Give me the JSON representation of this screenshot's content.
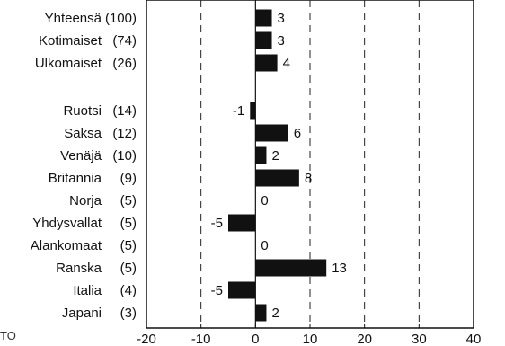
{
  "chart_data": {
    "type": "bar",
    "orientation": "horizontal",
    "categories": [
      {
        "label": "Yhteensä",
        "count": "(100)",
        "value": 3
      },
      {
        "label": "Kotimaiset",
        "count": "(74)",
        "value": 3
      },
      {
        "label": "Ulkomaiset",
        "count": "(26)",
        "value": 4
      },
      {
        "label": "Ruotsi",
        "count": "(14)",
        "value": -1
      },
      {
        "label": "Saksa",
        "count": "(12)",
        "value": 6
      },
      {
        "label": "Venäjä",
        "count": "(10)",
        "value": 2
      },
      {
        "label": "Britannia",
        "count": "(9)",
        "value": 8
      },
      {
        "label": "Norja",
        "count": "(5)",
        "value": 0
      },
      {
        "label": "Yhdysvallat",
        "count": "(5)",
        "value": -5
      },
      {
        "label": "Alankomaat",
        "count": "(5)",
        "value": 0
      },
      {
        "label": "Ranska",
        "count": "(5)",
        "value": 13
      },
      {
        "label": "Italia",
        "count": "(4)",
        "value": -5
      },
      {
        "label": "Japani",
        "count": "(3)",
        "value": 2
      }
    ],
    "groups": [
      [
        0,
        1,
        2
      ],
      [
        3,
        4,
        5,
        6,
        7,
        8,
        9,
        10,
        11,
        12
      ]
    ],
    "xlim": [
      -20,
      40
    ],
    "xticks": [
      -20,
      -10,
      0,
      10,
      20,
      30,
      40
    ],
    "grid": "vertical dashed",
    "bar_color": "#111111"
  },
  "corner_text": "TO"
}
